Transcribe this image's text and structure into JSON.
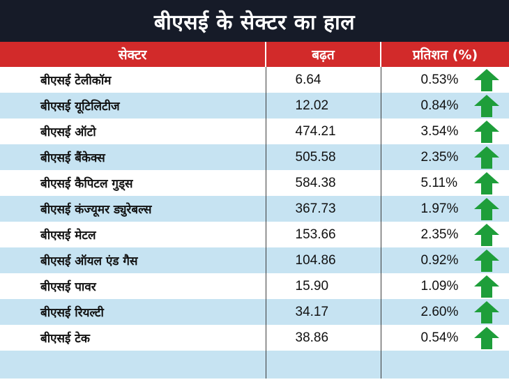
{
  "title": "बीएसई के सेक्टर का हाल",
  "colors": {
    "header_bg": "#161b28",
    "column_header_bg": "#d22a2a",
    "stripe": "#c6e3f2",
    "arrow": "#1e9e3a"
  },
  "chart_data": {
    "type": "table",
    "title": "बीएसई के सेक्टर का हाल",
    "columns": [
      "सेक्टर",
      "बढ़त",
      "प्रतिशत (%)"
    ],
    "rows": [
      {
        "sector": "बीएसई टेलीकॉम",
        "change": "6.64",
        "pct": "0.53%",
        "direction": "up"
      },
      {
        "sector": "बीएसई यूटिलिटीज",
        "change": "12.02",
        "pct": "0.84%",
        "direction": "up"
      },
      {
        "sector": "बीएसई ऑटो",
        "change": "474.21",
        "pct": "3.54%",
        "direction": "up"
      },
      {
        "sector": "बीएसई बैंकेक्स",
        "change": "505.58",
        "pct": "2.35%",
        "direction": "up"
      },
      {
        "sector": "बीएसई कैपिटल गुड्स",
        "change": "584.38",
        "pct": "5.11%",
        "direction": "up"
      },
      {
        "sector": "बीएसई कंज्यूमर ड्युरेबल्स",
        "change": "367.73",
        "pct": "1.97%",
        "direction": "up"
      },
      {
        "sector": "बीएसई मेटल",
        "change": "153.66",
        "pct": "2.35%",
        "direction": "up"
      },
      {
        "sector": "बीएसई ऑयल एंड गैस",
        "change": "104.86",
        "pct": "0.92%",
        "direction": "up"
      },
      {
        "sector": "बीएसई पावर",
        "change": "15.90",
        "pct": "1.09%",
        "direction": "up"
      },
      {
        "sector": "बीएसई रियल्टी",
        "change": "34.17",
        "pct": "2.60%",
        "direction": "up"
      },
      {
        "sector": "बीएसई टेक",
        "change": "38.86",
        "pct": "0.54%",
        "direction": "up"
      }
    ]
  }
}
